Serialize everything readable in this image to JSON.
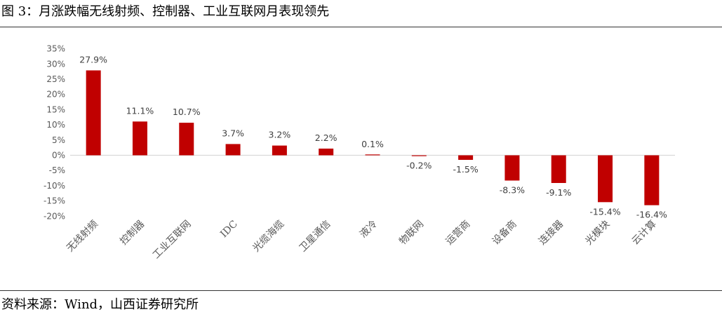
{
  "figure": {
    "title": "图 3：月涨跌幅无线射频、控制器、工业互联网月表现领先",
    "source": "资料来源：Wind，山西证券研究所"
  },
  "chart_data": {
    "type": "bar",
    "title": "",
    "xlabel": "",
    "ylabel": "",
    "categories": [
      "无线射频",
      "控制器",
      "工业互联网",
      "IDC",
      "光缆海缆",
      "卫星通信",
      "液冷",
      "物联网",
      "运营商",
      "设备商",
      "连接器",
      "光模块",
      "云计算"
    ],
    "values": [
      27.9,
      11.1,
      10.7,
      3.7,
      3.2,
      2.2,
      0.1,
      -0.2,
      -1.5,
      -8.3,
      -9.1,
      -15.4,
      -16.4
    ],
    "value_labels": [
      "27.9%",
      "11.1%",
      "10.7%",
      "3.7%",
      "3.2%",
      "2.2%",
      "0.1%",
      "-0.2%",
      "-1.5%",
      "-8.3%",
      "-9.1%",
      "-15.4%",
      "-16.4%"
    ],
    "yticks": [
      35,
      30,
      25,
      20,
      15,
      10,
      5,
      0,
      -5,
      -10,
      -15,
      -20
    ],
    "ytick_labels": [
      "35%",
      "30%",
      "25%",
      "20%",
      "15%",
      "10%",
      "5%",
      "0%",
      "-5%",
      "-10%",
      "-15%",
      "-20%"
    ],
    "ylim": [
      -20,
      35
    ],
    "grid": false,
    "legend": "none",
    "colors": {
      "bar": "#c00000",
      "axis": "#d9d9d9"
    }
  }
}
